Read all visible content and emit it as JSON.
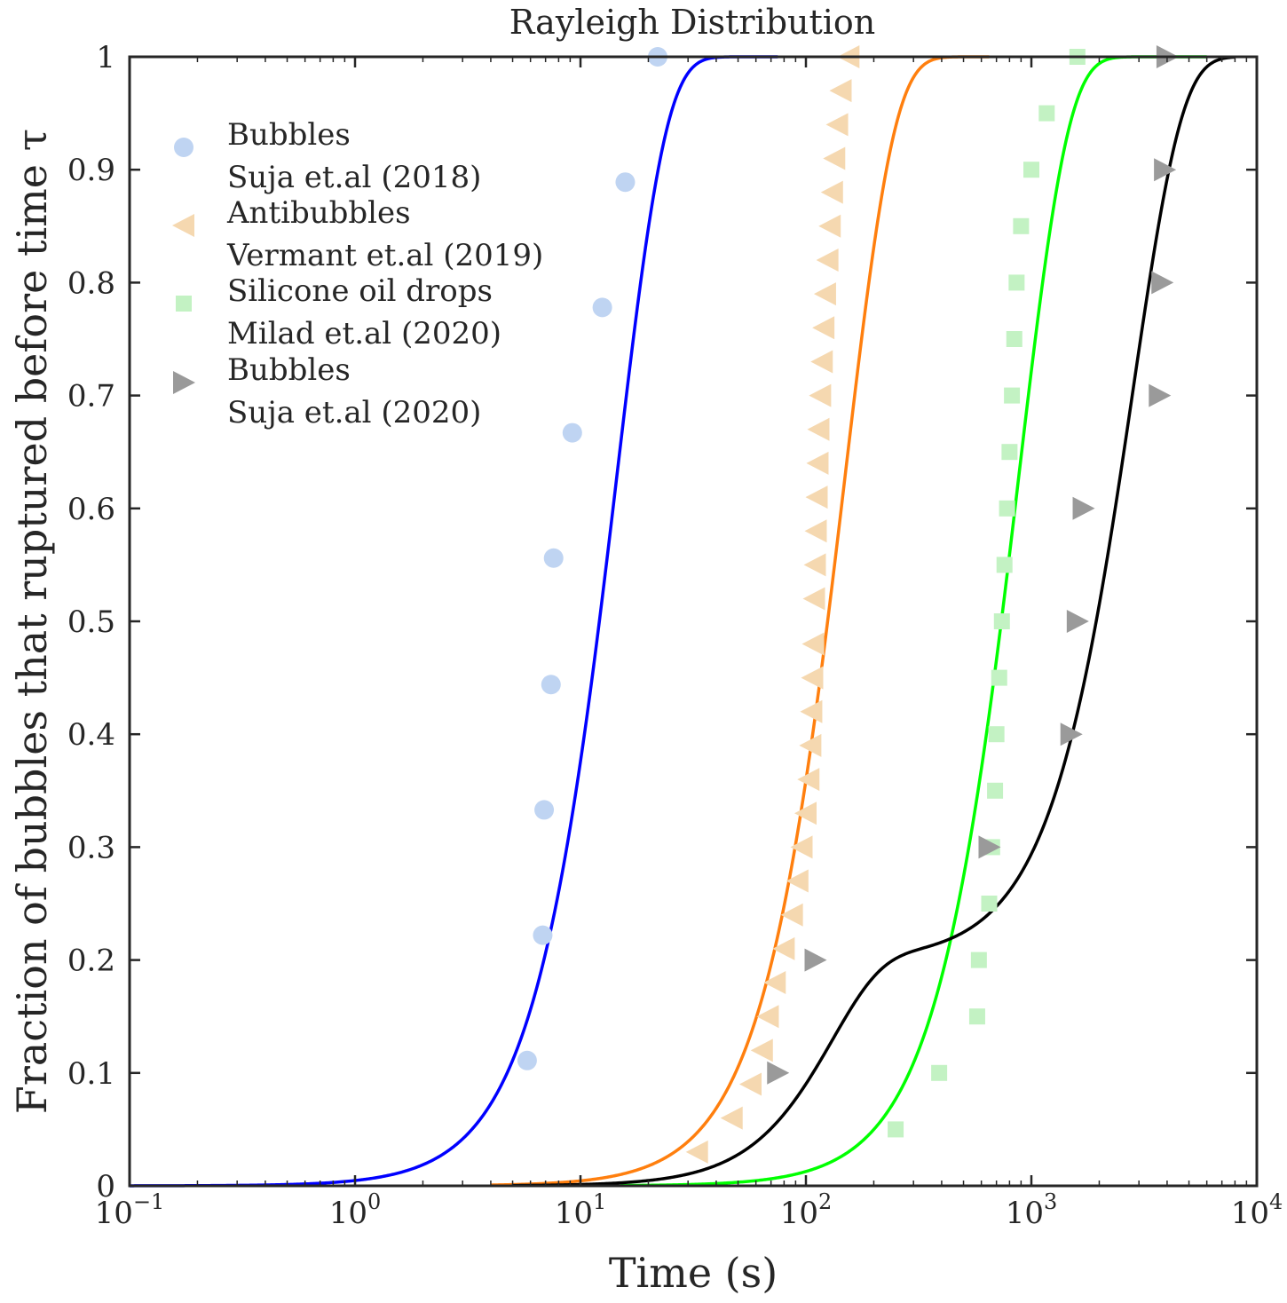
{
  "chart_data": {
    "type": "scatter",
    "title": "Rayleigh Distribution",
    "xlabel": "Time (s)",
    "ylabel": "Fraction of bubbles that ruptured before time τ",
    "x_scale": "log",
    "xlim": [
      0.1,
      10000
    ],
    "ylim": [
      0,
      1
    ],
    "x_ticks": [
      {
        "base": "10",
        "exp": "−1"
      },
      {
        "base": "10",
        "exp": "0"
      },
      {
        "base": "10",
        "exp": "1"
      },
      {
        "base": "10",
        "exp": "2"
      },
      {
        "base": "10",
        "exp": "3"
      },
      {
        "base": "10",
        "exp": "4"
      }
    ],
    "y_ticks": [
      "0",
      "0.1",
      "0.2",
      "0.3",
      "0.4",
      "0.5",
      "0.6",
      "0.7",
      "0.8",
      "0.9",
      "1"
    ],
    "grid": false,
    "legend_position": "top-left",
    "fits": [
      {
        "color": "#0000ff",
        "x_range": [
          0.1,
          75
        ],
        "components": [
          {
            "w": 1.0,
            "sigma": 10.3
          }
        ]
      },
      {
        "color": "#ff7f0e",
        "x_range": [
          4,
          650
        ],
        "components": [
          {
            "w": 1.0,
            "sigma": 106
          }
        ]
      },
      {
        "color": "#00ff00",
        "x_range": [
          15,
          6000
        ],
        "components": [
          {
            "w": 1.0,
            "sigma": 625
          }
        ]
      },
      {
        "color": "#000000",
        "x_range": [
          5,
          8000
        ],
        "components": [
          {
            "w": 0.2,
            "sigma": 92
          },
          {
            "w": 0.8,
            "sigma": 2000
          }
        ]
      }
    ],
    "series": [
      {
        "legend_line1": "Bubbles",
        "legend_line2": "Suja et.al (2018)",
        "marker": "circle",
        "color": "#bfd4f2",
        "points": [
          [
            5.8,
            0.111
          ],
          [
            6.8,
            0.222
          ],
          [
            6.9,
            0.333
          ],
          [
            7.4,
            0.444
          ],
          [
            7.6,
            0.556
          ],
          [
            9.2,
            0.667
          ],
          [
            12.5,
            0.778
          ],
          [
            15.8,
            0.889
          ],
          [
            22,
            1.0
          ]
        ]
      },
      {
        "legend_line1": "Antibubbles",
        "legend_line2": "Vermant et.al (2019)",
        "marker": "triangle-left",
        "color": "#f5d8b0",
        "points": [
          [
            33,
            0.03
          ],
          [
            47,
            0.06
          ],
          [
            57,
            0.09
          ],
          [
            64,
            0.12
          ],
          [
            68,
            0.15
          ],
          [
            73,
            0.18
          ],
          [
            80,
            0.21
          ],
          [
            87,
            0.24
          ],
          [
            92,
            0.27
          ],
          [
            96,
            0.3
          ],
          [
            100,
            0.33
          ],
          [
            103,
            0.36
          ],
          [
            105,
            0.39
          ],
          [
            106,
            0.42
          ],
          [
            107,
            0.45
          ],
          [
            108,
            0.48
          ],
          [
            109,
            0.52
          ],
          [
            110,
            0.55
          ],
          [
            111,
            0.58
          ],
          [
            112,
            0.61
          ],
          [
            113,
            0.64
          ],
          [
            114,
            0.67
          ],
          [
            116,
            0.7
          ],
          [
            118,
            0.73
          ],
          [
            120,
            0.76
          ],
          [
            122,
            0.79
          ],
          [
            125,
            0.82
          ],
          [
            128,
            0.85
          ],
          [
            131,
            0.88
          ],
          [
            134,
            0.91
          ],
          [
            138,
            0.94
          ],
          [
            143,
            0.97
          ],
          [
            155,
            1.0
          ]
        ]
      },
      {
        "legend_line1": "Silicone oil drops",
        "legend_line2": "Milad et.al (2020)",
        "marker": "square",
        "color": "#c3f2c3",
        "points": [
          [
            250,
            0.05
          ],
          [
            390,
            0.1
          ],
          [
            575,
            0.15
          ],
          [
            585,
            0.2
          ],
          [
            650,
            0.25
          ],
          [
            670,
            0.3
          ],
          [
            690,
            0.35
          ],
          [
            700,
            0.4
          ],
          [
            720,
            0.45
          ],
          [
            740,
            0.5
          ],
          [
            760,
            0.55
          ],
          [
            780,
            0.6
          ],
          [
            800,
            0.65
          ],
          [
            820,
            0.7
          ],
          [
            840,
            0.75
          ],
          [
            860,
            0.8
          ],
          [
            900,
            0.85
          ],
          [
            1000,
            0.9
          ],
          [
            1170,
            0.95
          ],
          [
            1600,
            1.0
          ]
        ]
      },
      {
        "legend_line1": "Bubbles",
        "legend_line2": "Suja et.al (2020)",
        "marker": "triangle-right",
        "color": "#9a9a9a",
        "points": [
          [
            75,
            0.1
          ],
          [
            110,
            0.2
          ],
          [
            650,
            0.3
          ],
          [
            1500,
            0.4
          ],
          [
            1600,
            0.5
          ],
          [
            1700,
            0.6
          ],
          [
            3700,
            0.7
          ],
          [
            3800,
            0.8
          ],
          [
            3900,
            0.9
          ],
          [
            4000,
            1.0
          ]
        ]
      }
    ]
  }
}
